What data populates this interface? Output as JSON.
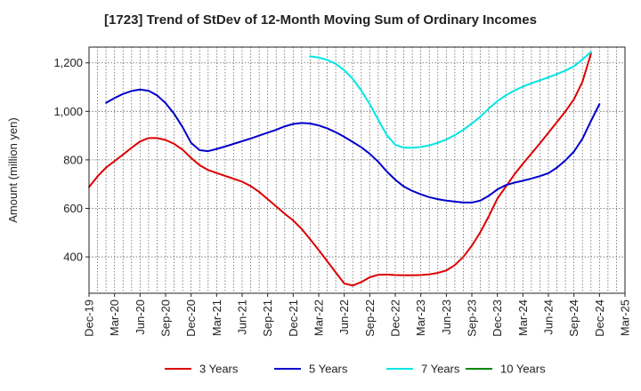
{
  "chart_data": {
    "type": "line",
    "title": "[1723]  Trend of StDev of 12-Month Moving Sum of Ordinary Incomes",
    "xlabel": "",
    "ylabel": "Amount (million yen)",
    "ylim": [
      250,
      1265
    ],
    "yticks": [
      400,
      600,
      800,
      1000,
      1200
    ],
    "yticklabels": [
      "400",
      "600",
      "800",
      "1,000",
      "1,200"
    ],
    "x_months_range": [
      "Dec-19",
      "Mar-25"
    ],
    "xticklabels": [
      "Dec-19",
      "Mar-20",
      "Jun-20",
      "Sep-20",
      "Dec-20",
      "Mar-21",
      "Jun-21",
      "Sep-21",
      "Dec-21",
      "Mar-22",
      "Jun-22",
      "Sep-22",
      "Dec-22",
      "Mar-23",
      "Jun-23",
      "Sep-23",
      "Dec-23",
      "Mar-24",
      "Jun-24",
      "Sep-24",
      "Dec-24",
      "Mar-25"
    ],
    "grid": true,
    "legend_position": "bottom",
    "series": [
      {
        "name": "3 Years",
        "color": "#dd0000",
        "start_index": 0,
        "values": [
          688,
          732,
          768,
          795,
          822,
          850,
          876,
          890,
          890,
          882,
          866,
          842,
          808,
          778,
          758,
          746,
          734,
          722,
          710,
          692,
          668,
          638,
          608,
          578,
          550,
          515,
          472,
          428,
          382,
          336,
          290,
          282,
          296,
          316,
          326,
          327,
          325,
          324,
          324,
          325,
          328,
          334,
          344,
          366,
          400,
          446,
          502,
          568,
          640,
          690,
          740,
          784,
          826,
          868,
          912,
          956,
          1000,
          1050,
          1122,
          1238
        ]
      },
      {
        "name": "5 Years",
        "color": "#0000cc",
        "start_index": 2,
        "values": [
          1035,
          1055,
          1072,
          1084,
          1090,
          1085,
          1066,
          1034,
          990,
          935,
          870,
          840,
          836,
          845,
          855,
          866,
          877,
          888,
          900,
          912,
          924,
          938,
          948,
          952,
          950,
          942,
          930,
          914,
          895,
          874,
          852,
          825,
          792,
          752,
          718,
          690,
          672,
          658,
          646,
          638,
          632,
          628,
          624,
          624,
          632,
          652,
          678,
          696,
          706,
          714,
          723,
          733,
          745,
          768,
          798,
          834,
          887,
          960,
          1030
        ]
      },
      {
        "name": "7 Years",
        "color": "#00e5e5",
        "start_index": 26,
        "values": [
          1227,
          1222,
          1212,
          1196,
          1170,
          1134,
          1086,
          1030,
          965,
          902,
          862,
          850,
          850,
          853,
          860,
          870,
          884,
          902,
          924,
          950,
          978,
          1012,
          1042,
          1066,
          1086,
          1102,
          1116,
          1128,
          1140,
          1154,
          1168,
          1186,
          1214,
          1245
        ]
      },
      {
        "name": "10 Years",
        "color": "#008800",
        "start_index": 0,
        "values": []
      }
    ]
  }
}
